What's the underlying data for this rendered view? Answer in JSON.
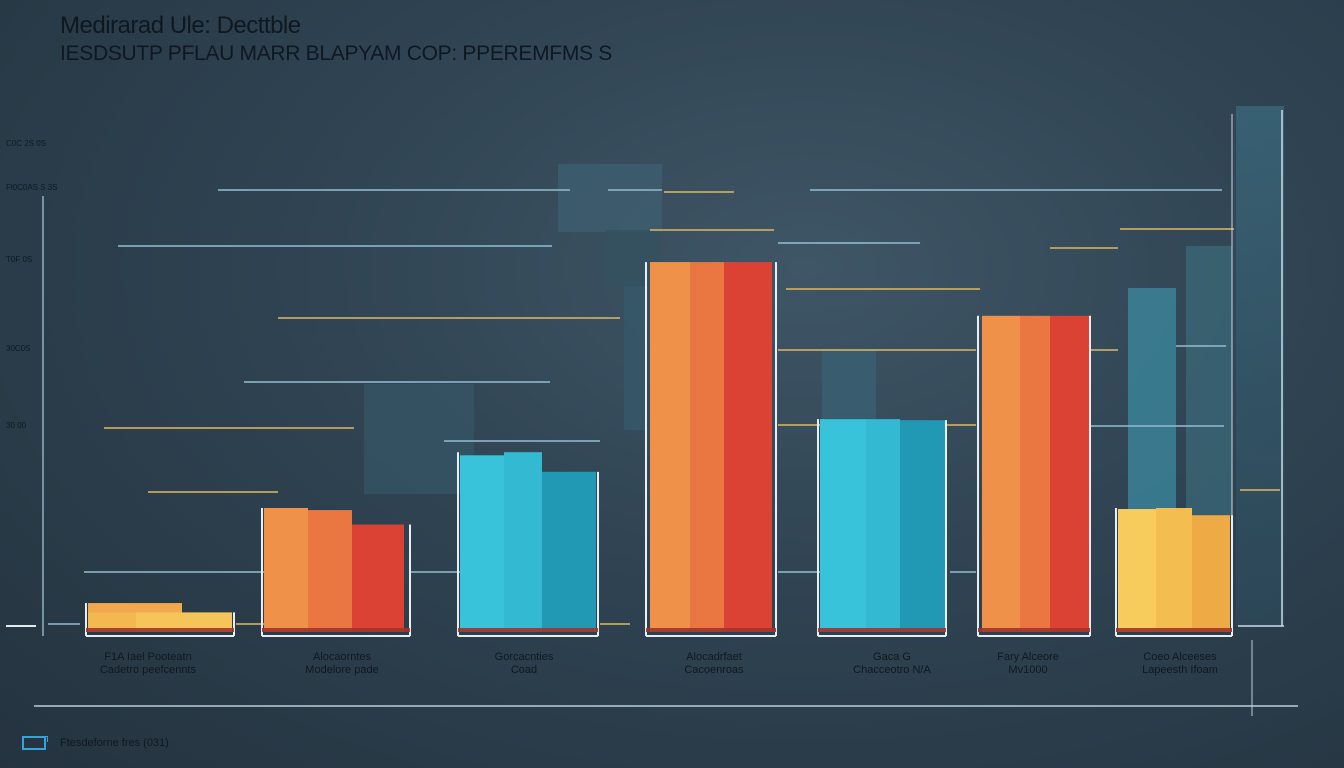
{
  "title": "Medirarad Ule: Decttble",
  "subtitle": "IESDSUTP PFLAU MARR BLAPYAM COP: PPEREMFMS S",
  "footer": {
    "label": "Ftesdeforne fres (031)",
    "icon": "chart-icon"
  },
  "colors": {
    "background": "#2f4352",
    "orange": "#ee7a3f",
    "red": "#df4534",
    "cyan": "#35bfd6",
    "teal": "#2199b4",
    "yellow": "#f4c45a",
    "gridline": "#8cb7cb",
    "goldline": "#d6b25e"
  },
  "chart_data": {
    "type": "bar",
    "title": "Medirarad Ule: Decttble",
    "ylabel": "",
    "xlabel": "",
    "ylim": [
      0,
      450
    ],
    "yticks": [
      {
        "label": "C0C 2S 0S",
        "value": 480
      },
      {
        "label": "Fl0C0AS  S 3S",
        "value": 445
      },
      {
        "label": "T0F 0S",
        "value": 360
      },
      {
        "label": "30C0S",
        "value": 272
      },
      {
        "label": "30 00",
        "value": 202
      }
    ],
    "groups": [
      {
        "label_lines": [
          "F1A  Iael Pooteatn",
          "Cadetro peefcennts"
        ],
        "palette": "yellow-flat",
        "values": [
          28,
          28,
          19,
          19
        ]
      },
      {
        "label_lines": [
          "Alocaorntes",
          "Modelore pade"
        ],
        "palette": "warm",
        "values": [
          120,
          118,
          104
        ]
      },
      {
        "label_lines": [
          "Gorcacnties",
          "Coad"
        ],
        "palette": "cool",
        "values": [
          171,
          174,
          155
        ]
      },
      {
        "label_lines": [
          "Alocadrfaet",
          "Cacoenroas"
        ],
        "palette": "warm",
        "values": [
          358,
          358,
          358
        ]
      },
      {
        "label_lines": [
          "Gaca G",
          "Chacceotro N/A"
        ],
        "palette": "cool",
        "values": [
          206,
          206,
          205
        ]
      },
      {
        "label_lines": [
          "Fary Alceore",
          "Mv1000"
        ],
        "palette": "warm",
        "values": [
          306,
          306,
          306
        ]
      },
      {
        "label_lines": [
          "Coeo Alceeses",
          "Lapeesth Ifoam"
        ],
        "palette": "yellow",
        "values": [
          119,
          120,
          113
        ]
      }
    ],
    "grid": true,
    "legend": "none"
  }
}
